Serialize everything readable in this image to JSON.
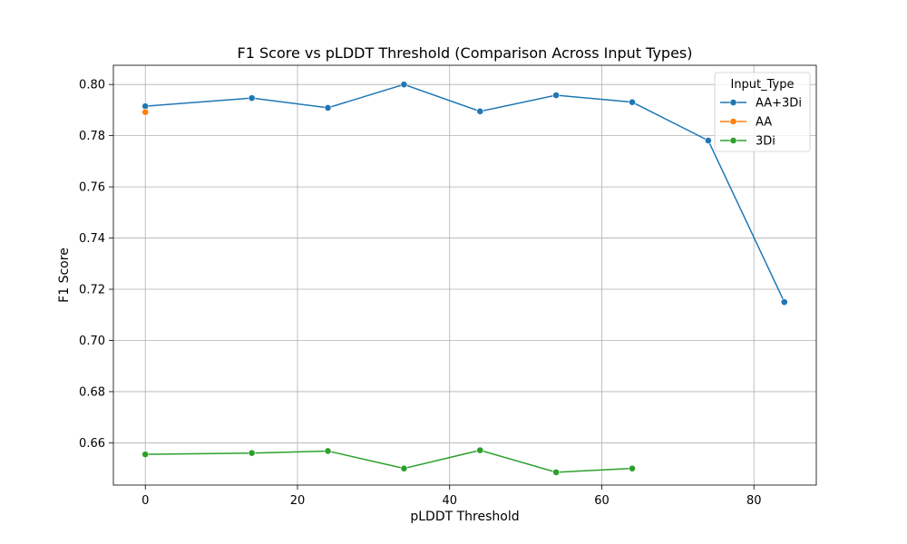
{
  "chart_data": {
    "type": "line",
    "title": "F1 Score vs pLDDT Threshold (Comparison Across Input Types)",
    "xlabel": "pLDDT Threshold",
    "ylabel": "F1 Score",
    "xlim": [
      -4.2,
      88.2
    ],
    "ylim": [
      0.6435,
      0.8075
    ],
    "xticks": [
      0,
      20,
      40,
      60,
      80
    ],
    "yticks": [
      0.66,
      0.68,
      0.7,
      0.72,
      0.74,
      0.76,
      0.78,
      0.8
    ],
    "grid": true,
    "legend": {
      "title": "Input_Type",
      "location": "top-right"
    },
    "series": [
      {
        "name": "AA+3Di",
        "color": "#1f77b4",
        "x": [
          0,
          14,
          24,
          34,
          44,
          54,
          64,
          74,
          84
        ],
        "y": [
          0.7915,
          0.7947,
          0.7909,
          0.8,
          0.7895,
          0.7958,
          0.7931,
          0.7781,
          0.715
        ]
      },
      {
        "name": "AA",
        "color": "#ff7f0e",
        "x": [
          0
        ],
        "y": [
          0.7892
        ]
      },
      {
        "name": "3Di",
        "color": "#2ca02c",
        "x": [
          0,
          14,
          24,
          34,
          44,
          54,
          64
        ],
        "y": [
          0.6555,
          0.656,
          0.6568,
          0.65,
          0.6571,
          0.6485,
          0.65
        ]
      }
    ]
  }
}
